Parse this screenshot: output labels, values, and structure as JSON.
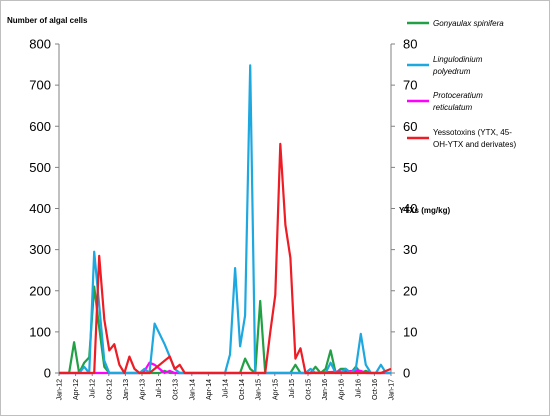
{
  "chart_data": {
    "type": "line",
    "y_left_label": "Number of algal cells",
    "y_right_label": "YTXs (mg/kg)",
    "y_left_lim": [
      0,
      800
    ],
    "y_right_lim": [
      0,
      80
    ],
    "y_left_ticks": [
      "0",
      "100",
      "200",
      "300",
      "400",
      "500",
      "600",
      "700",
      "800"
    ],
    "y_right_ticks": [
      "0",
      "10",
      "20",
      "30",
      "40",
      "50",
      "60",
      "70",
      "80"
    ],
    "x_ticks": [
      "Jan-12",
      "Apr-12",
      "Jul-12",
      "Oct-12",
      "Jan-13",
      "Apr-13",
      "Jul-13",
      "Oct-13",
      "Jan-14",
      "Apr-14",
      "Jul-14",
      "Oct-14",
      "Jan-15",
      "Apr-15",
      "Jul-15",
      "Oct-15",
      "Jan-16",
      "Apr-16",
      "Jul-16",
      "Oct-16",
      "Jan-17"
    ],
    "grid": false,
    "legend_position": "right",
    "series": [
      {
        "name": "Gonyaulax spinifera",
        "legend_lines": [
          "Gonyaulax spinifera"
        ],
        "italic": true,
        "color": "#22a045",
        "axis": "left",
        "points": [
          [
            0,
            0
          ],
          [
            2,
            0
          ],
          [
            3,
            75
          ],
          [
            4,
            0
          ],
          [
            5,
            25
          ],
          [
            6,
            38
          ],
          [
            7,
            210
          ],
          [
            8,
            110
          ],
          [
            9,
            15
          ],
          [
            10,
            0
          ],
          [
            11,
            0
          ],
          [
            12,
            0
          ],
          [
            13,
            0
          ],
          [
            14,
            0
          ],
          [
            15,
            0
          ],
          [
            16,
            0
          ],
          [
            17,
            0
          ],
          [
            18,
            0
          ],
          [
            19,
            0
          ],
          [
            20,
            0
          ],
          [
            21,
            5
          ],
          [
            22,
            0
          ],
          [
            23,
            0
          ],
          [
            24,
            0
          ],
          [
            25,
            0
          ],
          [
            26,
            0
          ],
          [
            27,
            0
          ],
          [
            28,
            0
          ],
          [
            29,
            0
          ],
          [
            30,
            0
          ],
          [
            31,
            0
          ],
          [
            32,
            0
          ],
          [
            33,
            0
          ],
          [
            34,
            0
          ],
          [
            35,
            0
          ],
          [
            36,
            0
          ],
          [
            37,
            35
          ],
          [
            38,
            10
          ],
          [
            39,
            0
          ],
          [
            40,
            175
          ],
          [
            41,
            0
          ],
          [
            42,
            0
          ],
          [
            43,
            0
          ],
          [
            44,
            0
          ],
          [
            45,
            0
          ],
          [
            46,
            0
          ],
          [
            47,
            20
          ],
          [
            48,
            0
          ],
          [
            49,
            0
          ],
          [
            50,
            0
          ],
          [
            51,
            15
          ],
          [
            52,
            0
          ],
          [
            53,
            10
          ],
          [
            54,
            55
          ],
          [
            55,
            0
          ],
          [
            56,
            10
          ],
          [
            57,
            10
          ],
          [
            58,
            0
          ],
          [
            59,
            15
          ],
          [
            60,
            0
          ],
          [
            61,
            5
          ],
          [
            62,
            0
          ],
          [
            63,
            0
          ],
          [
            64,
            0
          ],
          [
            65,
            0
          ],
          [
            66,
            0
          ]
        ]
      },
      {
        "name": "Lingulodinium polyedrum",
        "legend_lines": [
          "Lingulodinium",
          "polyedrum"
        ],
        "italic": true,
        "color": "#1ea8e0",
        "axis": "left",
        "points": [
          [
            0,
            0
          ],
          [
            3,
            0
          ],
          [
            4,
            0
          ],
          [
            5,
            15
          ],
          [
            6,
            0
          ],
          [
            7,
            295
          ],
          [
            8,
            165
          ],
          [
            9,
            30
          ],
          [
            10,
            0
          ],
          [
            11,
            0
          ],
          [
            12,
            0
          ],
          [
            13,
            0
          ],
          [
            14,
            0
          ],
          [
            15,
            0
          ],
          [
            16,
            0
          ],
          [
            17,
            10
          ],
          [
            18,
            0
          ],
          [
            19,
            120
          ],
          [
            20,
            95
          ],
          [
            21,
            70
          ],
          [
            22,
            40
          ],
          [
            23,
            10
          ],
          [
            24,
            0
          ],
          [
            25,
            0
          ],
          [
            26,
            0
          ],
          [
            27,
            0
          ],
          [
            28,
            0
          ],
          [
            29,
            0
          ],
          [
            30,
            0
          ],
          [
            31,
            0
          ],
          [
            32,
            0
          ],
          [
            33,
            0
          ],
          [
            34,
            45
          ],
          [
            35,
            255
          ],
          [
            36,
            65
          ],
          [
            37,
            140
          ],
          [
            38,
            748
          ],
          [
            39,
            0
          ],
          [
            40,
            0
          ],
          [
            41,
            0
          ],
          [
            42,
            0
          ],
          [
            43,
            0
          ],
          [
            44,
            0
          ],
          [
            45,
            0
          ],
          [
            46,
            0
          ],
          [
            47,
            0
          ],
          [
            48,
            0
          ],
          [
            49,
            0
          ],
          [
            50,
            10
          ],
          [
            51,
            0
          ],
          [
            52,
            0
          ],
          [
            53,
            0
          ],
          [
            54,
            25
          ],
          [
            55,
            0
          ],
          [
            56,
            0
          ],
          [
            57,
            10
          ],
          [
            58,
            0
          ],
          [
            59,
            10
          ],
          [
            60,
            95
          ],
          [
            61,
            20
          ],
          [
            62,
            0
          ],
          [
            63,
            0
          ],
          [
            64,
            20
          ],
          [
            65,
            0
          ],
          [
            66,
            0
          ]
        ]
      },
      {
        "name": "Protoceratium reticulatum",
        "legend_lines": [
          "Protoceratium",
          "reticulatum"
        ],
        "italic": true,
        "color": "#ff00ff",
        "axis": "left",
        "points": [
          [
            0,
            0
          ],
          [
            15,
            0
          ],
          [
            16,
            0
          ],
          [
            17,
            5
          ],
          [
            18,
            25
          ],
          [
            19,
            20
          ],
          [
            20,
            10
          ],
          [
            21,
            0
          ],
          [
            22,
            5
          ],
          [
            23,
            0
          ],
          [
            30,
            0
          ],
          [
            40,
            0
          ],
          [
            50,
            0
          ],
          [
            59,
            5
          ],
          [
            60,
            5
          ],
          [
            61,
            0
          ],
          [
            66,
            0
          ]
        ]
      },
      {
        "name": "Yessotoxins (YTX, 45-OH-YTX and derivates)",
        "legend_lines": [
          "Yessotoxins (YTX, 45-",
          "OH-YTX and derivates)"
        ],
        "italic": false,
        "color": "#ee1c24",
        "axis": "right",
        "points": [
          [
            0,
            0
          ],
          [
            7,
            0
          ],
          [
            8,
            28.5
          ],
          [
            9,
            13
          ],
          [
            10,
            5.5
          ],
          [
            11,
            7
          ],
          [
            12,
            2
          ],
          [
            13,
            0
          ],
          [
            14,
            4
          ],
          [
            15,
            1
          ],
          [
            16,
            0
          ],
          [
            17,
            0
          ],
          [
            18,
            0
          ],
          [
            19,
            1
          ],
          [
            20,
            2
          ],
          [
            21,
            3
          ],
          [
            22,
            4
          ],
          [
            23,
            1
          ],
          [
            24,
            2
          ],
          [
            25,
            0
          ],
          [
            26,
            0
          ],
          [
            27,
            0
          ],
          [
            28,
            0
          ],
          [
            29,
            0
          ],
          [
            30,
            0
          ],
          [
            31,
            0
          ],
          [
            32,
            0
          ],
          [
            33,
            0
          ],
          [
            34,
            0
          ],
          [
            35,
            0
          ],
          [
            36,
            0
          ],
          [
            37,
            0
          ],
          [
            38,
            0
          ],
          [
            39,
            0
          ],
          [
            40,
            0
          ],
          [
            41,
            0
          ],
          [
            42,
            10
          ],
          [
            43,
            19
          ],
          [
            44,
            55.7
          ],
          [
            45,
            36
          ],
          [
            46,
            28
          ],
          [
            47,
            3.5
          ],
          [
            48,
            6
          ],
          [
            49,
            0
          ],
          [
            50,
            0
          ],
          [
            51,
            0
          ],
          [
            52,
            0
          ],
          [
            53,
            0
          ],
          [
            54,
            0
          ],
          [
            55,
            0
          ],
          [
            56,
            0
          ],
          [
            57,
            0
          ],
          [
            58,
            0
          ],
          [
            59,
            0
          ],
          [
            60,
            0
          ],
          [
            61,
            0
          ],
          [
            62,
            0
          ],
          [
            63,
            0
          ],
          [
            64,
            0
          ],
          [
            65,
            0.5
          ],
          [
            66,
            1
          ]
        ]
      }
    ]
  }
}
